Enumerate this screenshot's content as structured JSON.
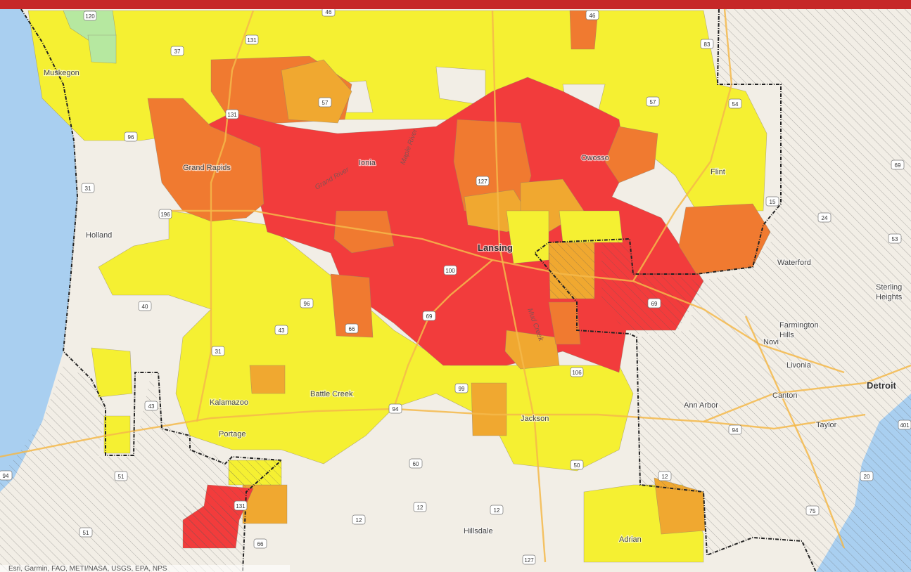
{
  "colors": {
    "header_bar": "#c62828",
    "land": "#f2eee6",
    "water": "#a9cff0",
    "level_high": "#f23c3c",
    "level_elevated": "#f07a30",
    "level_moderate": "#f0a830",
    "level_low": "#f5f032",
    "level_green": "#b6e8a0",
    "road": "#f4b84a",
    "boundary": "#222222"
  },
  "cities": [
    "Muskegon",
    "Grand Rapids",
    "Holland",
    "Ionia",
    "Owosso",
    "Flint",
    "Lansing",
    "Waterford",
    "Sterling",
    "Heights",
    "Farmington",
    "Hills",
    "Novi",
    "Livonia",
    "Detroit",
    "Canton",
    "Ann Arbor",
    "Taylor",
    "Battle Creek",
    "Kalamazoo",
    "Portage",
    "Jackson",
    "Hillsdale",
    "Adrian"
  ],
  "rivers": [
    "Grand River",
    "Maple River",
    "Mud Creek"
  ],
  "route_shields": [
    "120",
    "46",
    "131",
    "37",
    "46",
    "83",
    "57",
    "57",
    "54",
    "131",
    "96",
    "31",
    "196",
    "127",
    "69",
    "15",
    "24",
    "53",
    "66",
    "40",
    "43",
    "100",
    "69",
    "31",
    "43",
    "94",
    "99",
    "106",
    "96",
    "94",
    "60",
    "50",
    "12",
    "12",
    "12",
    "127",
    "51",
    "131",
    "51",
    "12",
    "20",
    "75",
    "69",
    "401",
    "94",
    "66"
  ],
  "attribution": "Esri, Garmin, FAO, METI/NASA, USGS, EPA, NPS"
}
